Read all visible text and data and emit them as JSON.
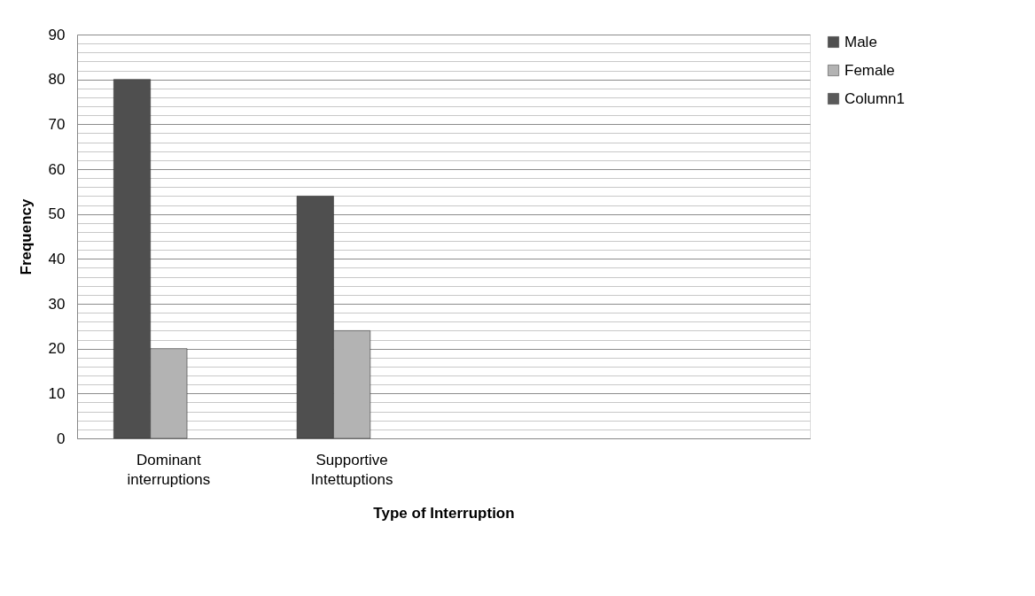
{
  "chart_data": {
    "type": "bar",
    "xlabel": "Type of  Interruption",
    "ylabel": "Frequency",
    "categories": [
      "Dominant interruptions",
      "Supportive Intettuptions",
      null,
      null
    ],
    "series": [
      {
        "name": "Male",
        "color": "#4f4f4f",
        "values": [
          80,
          54,
          null,
          null
        ]
      },
      {
        "name": "Female",
        "color": "#b3b3b3",
        "values": [
          20,
          24,
          null,
          null
        ]
      },
      {
        "name": "Column1",
        "color": "#5a5a5a",
        "values": [
          null,
          null,
          null,
          null
        ]
      }
    ],
    "ylim": [
      0,
      90
    ],
    "yticks": [
      0,
      {
        "value": 2,
        "label": null
      },
      {
        "value": 4,
        "label": null
      },
      {
        "value": 6,
        "label": null
      },
      {
        "value": 8,
        "label": null
      },
      10,
      {
        "value": 12,
        "label": null
      },
      {
        "value": 14,
        "label": null
      },
      {
        "value": 16,
        "label": null
      },
      {
        "value": 18,
        "label": null
      },
      20,
      {
        "value": 22,
        "label": null
      },
      {
        "value": 24,
        "label": null
      },
      {
        "value": 26,
        "label": null
      },
      {
        "value": 28,
        "label": null
      },
      30,
      {
        "value": 32,
        "label": null
      },
      {
        "value": 34,
        "label": null
      },
      {
        "value": 36,
        "label": null
      },
      {
        "value": 38,
        "label": null
      },
      40,
      {
        "value": 42,
        "label": null
      },
      {
        "value": 44,
        "label": null
      },
      {
        "value": 46,
        "label": null
      },
      {
        "value": 48,
        "label": null
      },
      50,
      {
        "value": 52,
        "label": null
      },
      {
        "value": 54,
        "label": null
      },
      {
        "value": 56,
        "label": null
      },
      {
        "value": 58,
        "label": null
      },
      60,
      {
        "value": 62,
        "label": null
      },
      {
        "value": 64,
        "label": null
      },
      {
        "value": 66,
        "label": null
      },
      {
        "value": 68,
        "label": null
      },
      70,
      {
        "value": 72,
        "label": null
      },
      {
        "value": 74,
        "label": null
      },
      {
        "value": 76,
        "label": null
      },
      {
        "value": 78,
        "label": null
      },
      80,
      {
        "value": 82,
        "label": null
      },
      {
        "value": 84,
        "label": null
      },
      {
        "value": 86,
        "label": null
      },
      {
        "value": 88,
        "label": null
      },
      90
    ],
    "grid": "y",
    "legend": "right"
  }
}
